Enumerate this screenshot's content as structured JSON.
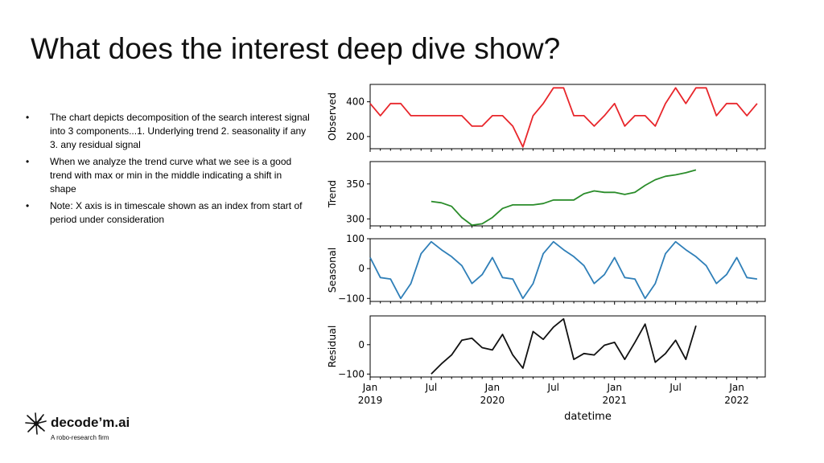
{
  "slide": {
    "title": "What does the interest deep dive show?",
    "bullets": [
      "The chart depicts decomposition of the search interest signal into 3 components...1. Underlying trend 2. seasonality if any 3. any residual signal",
      "When we analyze the trend curve what we see is a good trend with max or min in the middle indicating a shift in shape",
      "Note: X axis is in timescale shown as an index from start of period under consideration"
    ],
    "bullet_symbol": "•"
  },
  "logo": {
    "name": "decode’m.ai",
    "tagline": "A robo-research firm"
  },
  "chart_data": {
    "type": "line",
    "xlabel": "datetime",
    "x_tick_labels": [
      {
        "month": "Jan",
        "year": "2019"
      },
      {
        "month": "Jul",
        "year": ""
      },
      {
        "month": "Jan",
        "year": "2020"
      },
      {
        "month": "Jul",
        "year": ""
      },
      {
        "month": "Jan",
        "year": "2021"
      },
      {
        "month": "Jul",
        "year": ""
      },
      {
        "month": "Jan",
        "year": "2022"
      }
    ],
    "x_start": "2019-01",
    "x_end": "2022-03",
    "panels": [
      {
        "ylabel": "Observed",
        "color": "#e8262b",
        "ylim": [
          130,
          500
        ],
        "yticks": [
          200,
          400
        ],
        "values": [
          390,
          320,
          390,
          390,
          320,
          320,
          320,
          320,
          320,
          320,
          260,
          260,
          320,
          320,
          260,
          140,
          320,
          390,
          480,
          480,
          320,
          320,
          260,
          320,
          390,
          260,
          320,
          320,
          260,
          390,
          480,
          390,
          480,
          480,
          320,
          390,
          390,
          320,
          390
        ]
      },
      {
        "ylabel": "Trend",
        "color": "#2a8c2a",
        "ylim": [
          290,
          382
        ],
        "yticks": [
          300,
          350
        ],
        "values": [
          null,
          null,
          null,
          null,
          null,
          null,
          325,
          323,
          318,
          302,
          291,
          293,
          302,
          315,
          320,
          320,
          320,
          322,
          327,
          327,
          327,
          336,
          340,
          338,
          338,
          335,
          338,
          348,
          356,
          361,
          363,
          366,
          370,
          null,
          null,
          null,
          null,
          null,
          null
        ]
      },
      {
        "ylabel": "Seasonal",
        "color": "#2f7fb8",
        "ylim": [
          -110,
          100
        ],
        "yticks": [
          -100,
          0,
          100
        ],
        "values": [
          37,
          -30,
          -35,
          -100,
          -50,
          50,
          90,
          63,
          40,
          10,
          -50,
          -20,
          37,
          -30,
          -35,
          -100,
          -50,
          50,
          90,
          63,
          40,
          10,
          -50,
          -20,
          37,
          -30,
          -35,
          -100,
          -50,
          50,
          90,
          63,
          40,
          10,
          -50,
          -20,
          37,
          -30,
          -35
        ]
      },
      {
        "ylabel": "Residual",
        "color": "#111111",
        "ylim": [
          -110,
          98
        ],
        "yticks": [
          -100,
          0
        ],
        "values": [
          null,
          null,
          null,
          null,
          null,
          null,
          -100,
          -65,
          -35,
          15,
          22,
          -10,
          -18,
          35,
          -35,
          -80,
          45,
          18,
          60,
          88,
          -50,
          -30,
          -35,
          -2,
          8,
          -50,
          8,
          70,
          -60,
          -30,
          15,
          -50,
          65,
          null,
          null,
          null,
          null,
          null,
          null
        ]
      }
    ]
  }
}
